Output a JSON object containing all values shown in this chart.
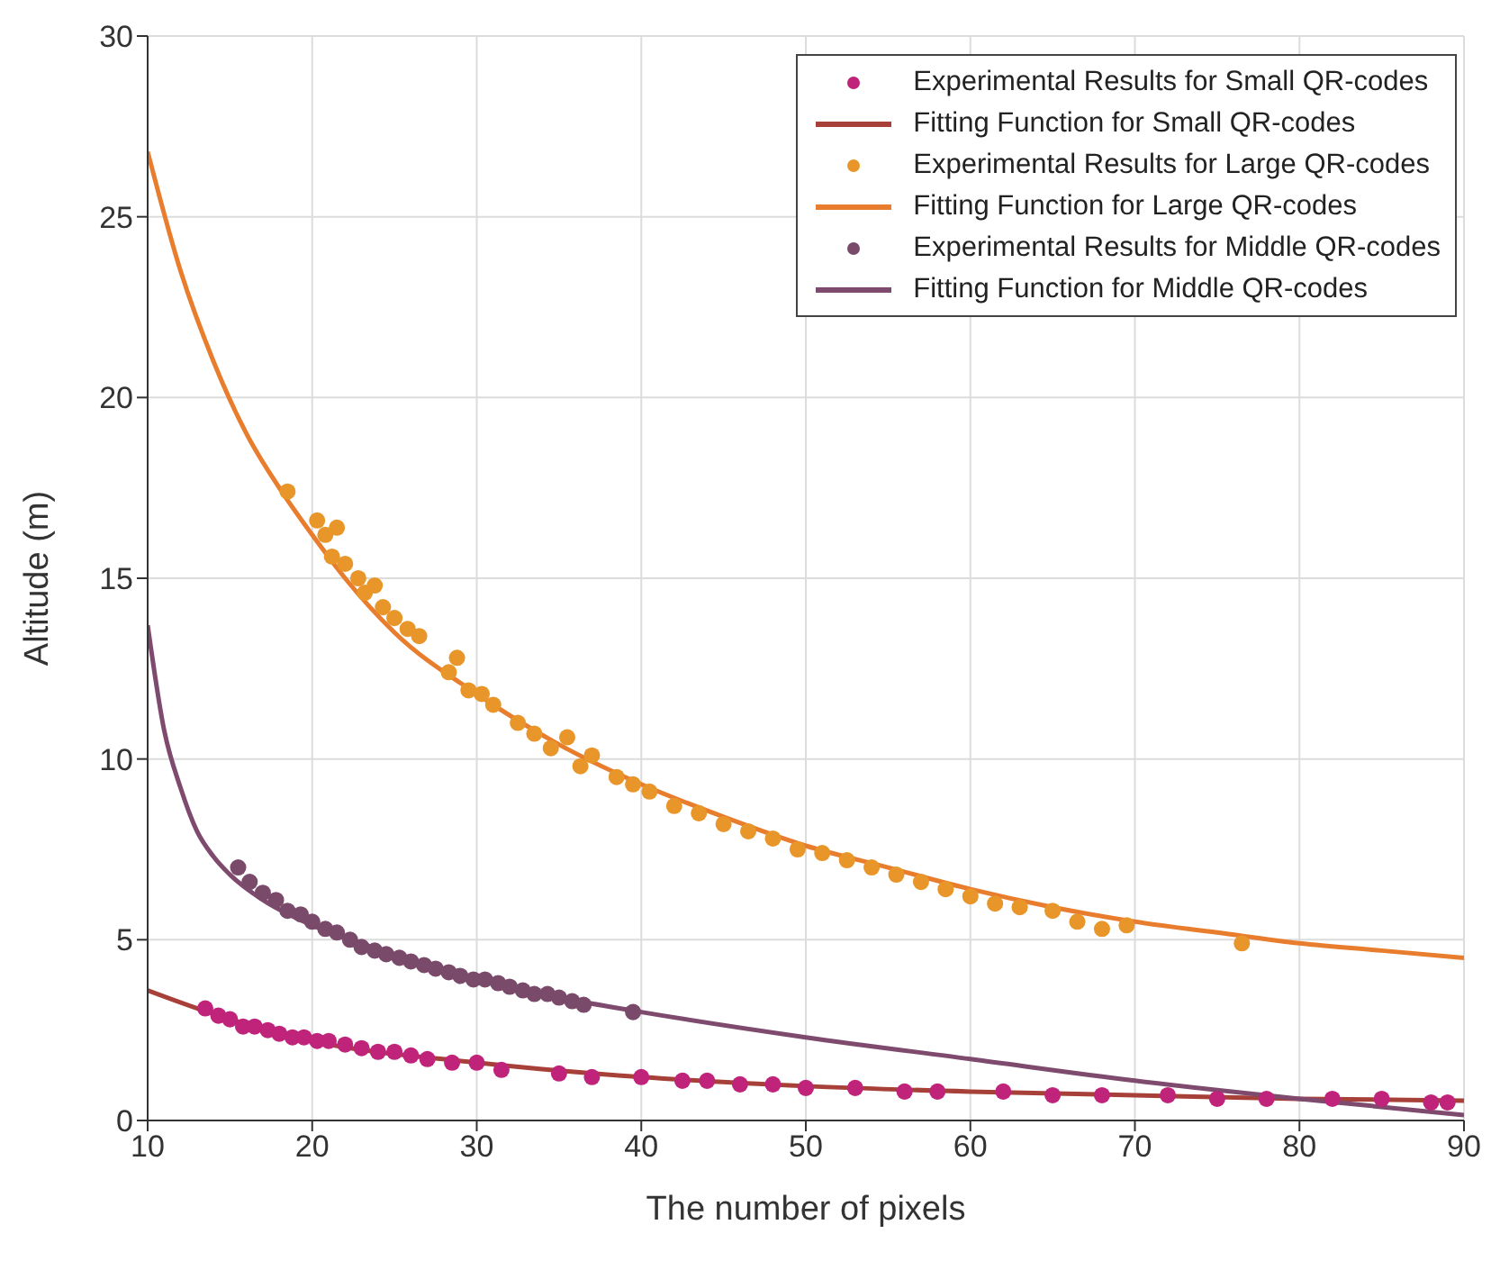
{
  "chart_data": {
    "type": "scatter",
    "xlabel": "The number of pixels",
    "ylabel": "Altitude (m)",
    "xlim": [
      10,
      90
    ],
    "xticks": [
      10,
      20,
      30,
      40,
      50,
      60,
      70,
      80,
      90
    ],
    "ylim": [
      0,
      30
    ],
    "yticks": [
      0,
      5,
      10,
      15,
      20,
      25,
      30
    ],
    "grid": true,
    "legend": "top right",
    "series": [
      {
        "name": "Experimental Results for Small QR-codes",
        "marker": "circle",
        "color": "#c0237a",
        "x": [
          13.5,
          14.3,
          15,
          15.8,
          16.5,
          17.3,
          18,
          18.8,
          19.5,
          20.3,
          21,
          22,
          23,
          24,
          25,
          26,
          27,
          28.5,
          30,
          31.5,
          35,
          37,
          40,
          42.5,
          44,
          46,
          48,
          50,
          53,
          56,
          58,
          62,
          65,
          68,
          72,
          75,
          78,
          82,
          85,
          88,
          89
        ],
        "values": [
          3.1,
          2.9,
          2.8,
          2.6,
          2.6,
          2.5,
          2.4,
          2.3,
          2.3,
          2.2,
          2.2,
          2.1,
          2.0,
          1.9,
          1.9,
          1.8,
          1.7,
          1.6,
          1.6,
          1.4,
          1.3,
          1.2,
          1.2,
          1.1,
          1.1,
          1.0,
          1.0,
          0.9,
          0.9,
          0.8,
          0.8,
          0.8,
          0.7,
          0.7,
          0.7,
          0.6,
          0.6,
          0.6,
          0.6,
          0.5,
          0.5
        ]
      },
      {
        "name": "Fitting Function for Small QR-codes",
        "type": "line",
        "marker": "none",
        "color": "#a8403a",
        "x": [
          10,
          15,
          20,
          30,
          40,
          50,
          60,
          70,
          80,
          90
        ],
        "values": [
          3.6,
          2.8,
          2.2,
          1.6,
          1.2,
          0.95,
          0.8,
          0.7,
          0.6,
          0.55
        ]
      },
      {
        "name": "Experimental Results for Large QR-codes",
        "marker": "circle",
        "color": "#e8962a",
        "x": [
          18.5,
          20.3,
          20.8,
          21.2,
          21.5,
          22,
          22.8,
          23.2,
          23.8,
          24.3,
          25,
          25.8,
          26.5,
          28.3,
          28.8,
          29.5,
          30.3,
          31,
          32.5,
          33.5,
          34.5,
          35.5,
          36.3,
          37,
          38.5,
          39.5,
          40.5,
          42,
          43.5,
          45,
          46.5,
          48,
          49.5,
          51,
          52.5,
          54,
          55.5,
          57,
          58.5,
          60,
          61.5,
          63,
          65,
          66.5,
          68,
          69.5,
          76.5
        ],
        "values": [
          17.4,
          16.6,
          16.2,
          15.6,
          16.4,
          15.4,
          15,
          14.6,
          14.8,
          14.2,
          13.9,
          13.6,
          13.4,
          12.4,
          12.8,
          11.9,
          11.8,
          11.5,
          11,
          10.7,
          10.3,
          10.6,
          9.8,
          10.1,
          9.5,
          9.3,
          9.1,
          8.7,
          8.5,
          8.2,
          8.0,
          7.8,
          7.5,
          7.4,
          7.2,
          7.0,
          6.8,
          6.6,
          6.4,
          6.2,
          6.0,
          5.9,
          5.8,
          5.5,
          5.3,
          5.4,
          4.9
        ]
      },
      {
        "name": "Fitting Function for Large QR-codes",
        "type": "line",
        "marker": "none",
        "color": "#e87d2e",
        "x": [
          10,
          12,
          14,
          16,
          18,
          20,
          22,
          25,
          30,
          35,
          40,
          45,
          50,
          55,
          60,
          65,
          70,
          75,
          80,
          85,
          90
        ],
        "values": [
          26.8,
          23.5,
          21,
          19,
          17.5,
          16.2,
          15,
          13.5,
          11.8,
          10.4,
          9.3,
          8.4,
          7.6,
          7.0,
          6.4,
          5.9,
          5.5,
          5.2,
          4.9,
          4.7,
          4.5
        ]
      },
      {
        "name": "Experimental Results for Middle QR-codes",
        "marker": "circle",
        "color": "#7a4a6a",
        "x": [
          15.5,
          16.2,
          17,
          17.8,
          18.5,
          19.3,
          20,
          20.8,
          21.5,
          22.3,
          23,
          23.8,
          24.5,
          25.3,
          26,
          26.8,
          27.5,
          28.3,
          29,
          29.8,
          30.5,
          31.3,
          32,
          32.8,
          33.5,
          34.3,
          35,
          35.8,
          36.5,
          39.5
        ],
        "values": [
          7.0,
          6.6,
          6.3,
          6.1,
          5.8,
          5.7,
          5.5,
          5.3,
          5.2,
          5.0,
          4.8,
          4.7,
          4.6,
          4.5,
          4.4,
          4.3,
          4.2,
          4.1,
          4.0,
          3.9,
          3.9,
          3.8,
          3.7,
          3.6,
          3.5,
          3.5,
          3.4,
          3.3,
          3.2,
          3.0
        ]
      },
      {
        "name": "Fitting Function for Middle QR-codes",
        "type": "line",
        "marker": "none",
        "color": "#7e4a6e",
        "x": [
          10,
          11,
          12,
          13,
          14,
          15,
          17,
          20,
          25,
          30,
          35,
          40,
          50,
          60,
          70,
          80,
          90
        ],
        "values": [
          13.7,
          10.8,
          9.2,
          8.0,
          7.3,
          6.8,
          6.1,
          5.4,
          4.6,
          3.9,
          3.4,
          3.0,
          2.3,
          1.7,
          1.1,
          0.6,
          0.15
        ]
      }
    ]
  }
}
